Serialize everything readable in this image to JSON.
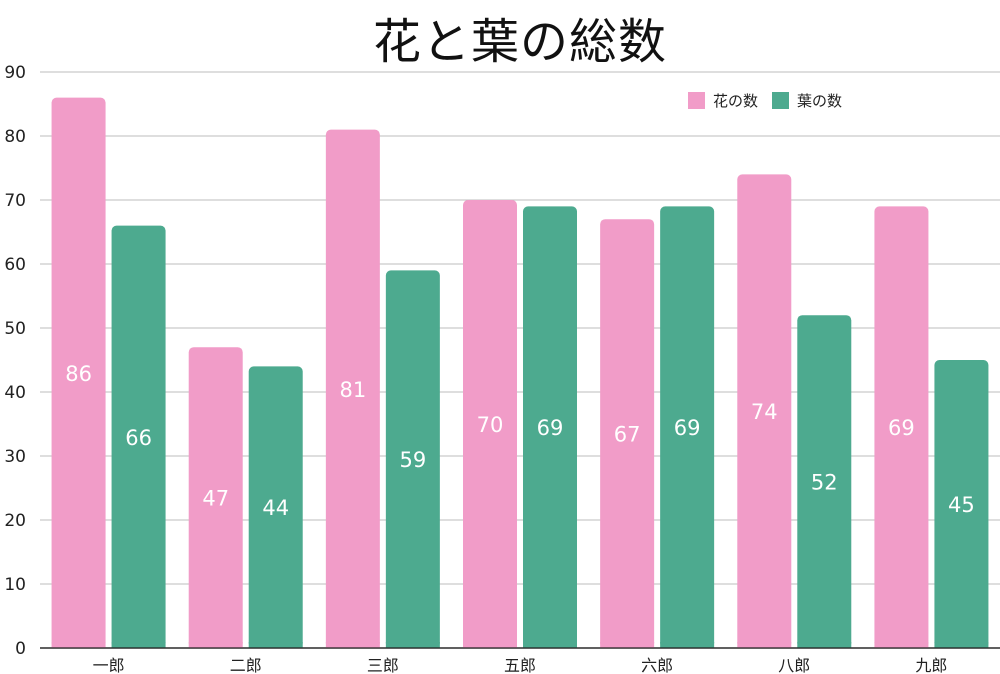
{
  "chart_data": {
    "type": "bar",
    "title": "花と葉の総数",
    "categories": [
      "一郎",
      "二郎",
      "三郎",
      "五郎",
      "六郎",
      "八郎",
      "九郎"
    ],
    "series": [
      {
        "name": "花の数",
        "color": "#f19cc8",
        "values": [
          86,
          47,
          81,
          70,
          67,
          74,
          69
        ]
      },
      {
        "name": "葉の数",
        "color": "#4daa8f",
        "values": [
          66,
          44,
          59,
          69,
          69,
          52,
          45
        ]
      }
    ],
    "ylim": [
      0,
      90
    ],
    "yticks": [
      0,
      10,
      20,
      30,
      40,
      50,
      60,
      70,
      80,
      90
    ],
    "grid": true,
    "legend_position": "top-right",
    "data_labels": true
  }
}
